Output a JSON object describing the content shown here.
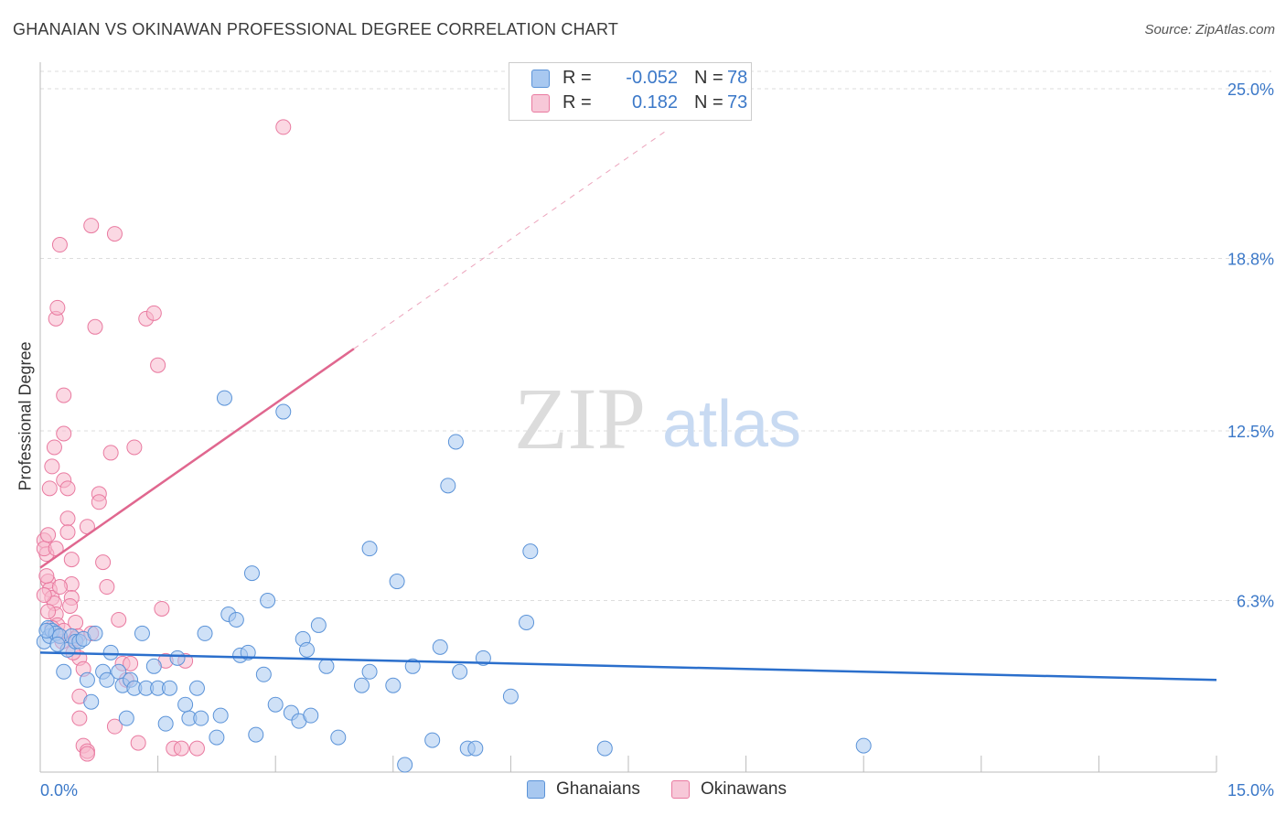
{
  "title": "GHANAIAN VS OKINAWAN PROFESSIONAL DEGREE CORRELATION CHART",
  "source": "Source: ZipAtlas.com",
  "watermark": {
    "zip": "ZIP",
    "atlas": "atlas"
  },
  "legend": {
    "rows": [
      {
        "r_label": "R =",
        "r_value": "-0.052",
        "n_label": "N =",
        "n_value": "78"
      },
      {
        "r_label": "R =",
        "r_value": "0.182",
        "n_label": "N =",
        "n_value": "73"
      }
    ]
  },
  "bottom_legend": {
    "ghanaians": "Ghanaians",
    "okinawans": "Okinawans"
  },
  "colors": {
    "blue_fill": "#a8c8f0",
    "blue_stroke": "#5b93d8",
    "blue_line": "#2b6fcc",
    "pink_fill": "#f7b8cc",
    "pink_stroke": "#e97aa0",
    "pink_line": "#e0678f",
    "tick_text": "#3b78c8",
    "grid": "#dddddd"
  },
  "chart_data": {
    "type": "scatter",
    "title": "GHANAIAN VS OKINAWAN PROFESSIONAL DEGREE CORRELATION CHART",
    "xlabel": "",
    "ylabel": "Professional Degree",
    "xlim": [
      0,
      15
    ],
    "ylim": [
      0,
      25.5
    ],
    "x_tick_labels": [
      "0.0%",
      "15.0%"
    ],
    "y_ticks": [
      6.3,
      12.5,
      18.8,
      25.0
    ],
    "y_tick_labels": [
      "6.3%",
      "12.5%",
      "18.8%",
      "25.0%"
    ],
    "series": [
      {
        "name": "Ghanaians",
        "R": -0.052,
        "N": 78,
        "trend": {
          "x": [
            0.0,
            15.0
          ],
          "y": [
            4.4,
            3.4
          ]
        },
        "points": [
          [
            0.05,
            4.8
          ],
          [
            0.1,
            5.3
          ],
          [
            0.12,
            5.0
          ],
          [
            0.15,
            5.2
          ],
          [
            0.2,
            5.1
          ],
          [
            0.25,
            5.0
          ],
          [
            0.3,
            3.7
          ],
          [
            0.35,
            4.5
          ],
          [
            0.4,
            5.0
          ],
          [
            0.45,
            4.8
          ],
          [
            0.5,
            4.8
          ],
          [
            0.55,
            4.9
          ],
          [
            0.6,
            3.4
          ],
          [
            0.65,
            2.6
          ],
          [
            0.7,
            5.1
          ],
          [
            0.8,
            3.7
          ],
          [
            0.85,
            3.4
          ],
          [
            0.9,
            4.4
          ],
          [
            1.0,
            3.7
          ],
          [
            1.05,
            3.2
          ],
          [
            1.1,
            2.0
          ],
          [
            1.15,
            3.4
          ],
          [
            1.2,
            3.1
          ],
          [
            1.3,
            5.1
          ],
          [
            1.35,
            3.1
          ],
          [
            1.45,
            3.9
          ],
          [
            1.5,
            3.1
          ],
          [
            1.6,
            1.8
          ],
          [
            1.65,
            3.1
          ],
          [
            1.75,
            4.2
          ],
          [
            1.85,
            2.5
          ],
          [
            1.9,
            2.0
          ],
          [
            2.0,
            3.1
          ],
          [
            2.05,
            2.0
          ],
          [
            2.1,
            5.1
          ],
          [
            2.25,
            1.3
          ],
          [
            2.3,
            2.1
          ],
          [
            2.35,
            13.7
          ],
          [
            2.4,
            5.8
          ],
          [
            2.5,
            5.6
          ],
          [
            2.55,
            4.3
          ],
          [
            2.65,
            4.4
          ],
          [
            2.7,
            7.3
          ],
          [
            2.75,
            1.4
          ],
          [
            2.85,
            3.6
          ],
          [
            2.9,
            6.3
          ],
          [
            3.0,
            2.5
          ],
          [
            3.1,
            13.2
          ],
          [
            3.2,
            2.2
          ],
          [
            3.3,
            1.9
          ],
          [
            3.35,
            4.9
          ],
          [
            3.4,
            4.5
          ],
          [
            3.45,
            2.1
          ],
          [
            3.55,
            5.4
          ],
          [
            3.65,
            3.9
          ],
          [
            3.8,
            1.3
          ],
          [
            4.1,
            3.2
          ],
          [
            4.2,
            3.7
          ],
          [
            4.2,
            8.2
          ],
          [
            4.5,
            3.2
          ],
          [
            4.55,
            7.0
          ],
          [
            4.65,
            0.3
          ],
          [
            4.75,
            3.9
          ],
          [
            5.0,
            1.2
          ],
          [
            5.1,
            4.6
          ],
          [
            5.2,
            10.5
          ],
          [
            5.3,
            12.1
          ],
          [
            5.35,
            3.7
          ],
          [
            5.45,
            0.9
          ],
          [
            5.55,
            0.9
          ],
          [
            5.65,
            4.2
          ],
          [
            6.0,
            2.8
          ],
          [
            6.2,
            5.5
          ],
          [
            6.25,
            8.1
          ],
          [
            7.2,
            0.9
          ],
          [
            10.5,
            1.0
          ],
          [
            0.08,
            5.2
          ],
          [
            0.22,
            4.7
          ]
        ]
      },
      {
        "name": "Okinawans",
        "R": 0.182,
        "N": 73,
        "trend": {
          "x": [
            0.0,
            4.0
          ],
          "y": [
            7.5,
            15.5
          ]
        },
        "trend_extension": {
          "x": [
            4.0,
            8.0
          ],
          "y": [
            15.5,
            23.5
          ]
        },
        "points": [
          [
            0.05,
            8.5
          ],
          [
            0.08,
            8.0
          ],
          [
            0.1,
            7.0
          ],
          [
            0.12,
            6.7
          ],
          [
            0.15,
            6.4
          ],
          [
            0.18,
            6.2
          ],
          [
            0.2,
            5.8
          ],
          [
            0.22,
            5.4
          ],
          [
            0.25,
            5.0
          ],
          [
            0.28,
            4.8
          ],
          [
            0.05,
            8.2
          ],
          [
            0.1,
            8.7
          ],
          [
            0.12,
            10.4
          ],
          [
            0.15,
            11.2
          ],
          [
            0.18,
            11.9
          ],
          [
            0.2,
            16.6
          ],
          [
            0.22,
            17.0
          ],
          [
            0.25,
            19.3
          ],
          [
            0.3,
            13.8
          ],
          [
            0.3,
            12.4
          ],
          [
            0.3,
            10.7
          ],
          [
            0.35,
            10.4
          ],
          [
            0.35,
            9.3
          ],
          [
            0.35,
            8.8
          ],
          [
            0.4,
            7.8
          ],
          [
            0.4,
            6.9
          ],
          [
            0.4,
            6.4
          ],
          [
            0.45,
            5.5
          ],
          [
            0.45,
            4.9
          ],
          [
            0.5,
            4.2
          ],
          [
            0.5,
            2.8
          ],
          [
            0.5,
            2.0
          ],
          [
            0.55,
            1.0
          ],
          [
            0.6,
            0.8
          ],
          [
            0.6,
            0.7
          ],
          [
            0.65,
            20.0
          ],
          [
            0.7,
            16.3
          ],
          [
            0.75,
            10.2
          ],
          [
            0.75,
            9.9
          ],
          [
            0.8,
            7.7
          ],
          [
            0.85,
            6.8
          ],
          [
            0.9,
            11.7
          ],
          [
            0.95,
            19.7
          ],
          [
            0.95,
            1.7
          ],
          [
            1.0,
            5.6
          ],
          [
            1.05,
            4.0
          ],
          [
            1.1,
            3.4
          ],
          [
            1.15,
            4.0
          ],
          [
            1.2,
            11.9
          ],
          [
            1.25,
            1.1
          ],
          [
            1.35,
            16.6
          ],
          [
            1.45,
            16.8
          ],
          [
            1.5,
            14.9
          ],
          [
            1.55,
            6.0
          ],
          [
            1.6,
            4.1
          ],
          [
            1.7,
            0.9
          ],
          [
            1.8,
            0.9
          ],
          [
            1.85,
            4.1
          ],
          [
            2.0,
            0.9
          ],
          [
            3.1,
            23.6
          ],
          [
            0.05,
            6.5
          ],
          [
            0.08,
            7.2
          ],
          [
            0.1,
            5.9
          ],
          [
            0.15,
            5.3
          ],
          [
            0.2,
            8.2
          ],
          [
            0.25,
            6.8
          ],
          [
            0.3,
            5.2
          ],
          [
            0.38,
            6.1
          ],
          [
            0.42,
            4.4
          ],
          [
            0.48,
            5.0
          ],
          [
            0.55,
            3.8
          ],
          [
            0.6,
            9.0
          ],
          [
            0.65,
            5.1
          ]
        ]
      }
    ]
  }
}
